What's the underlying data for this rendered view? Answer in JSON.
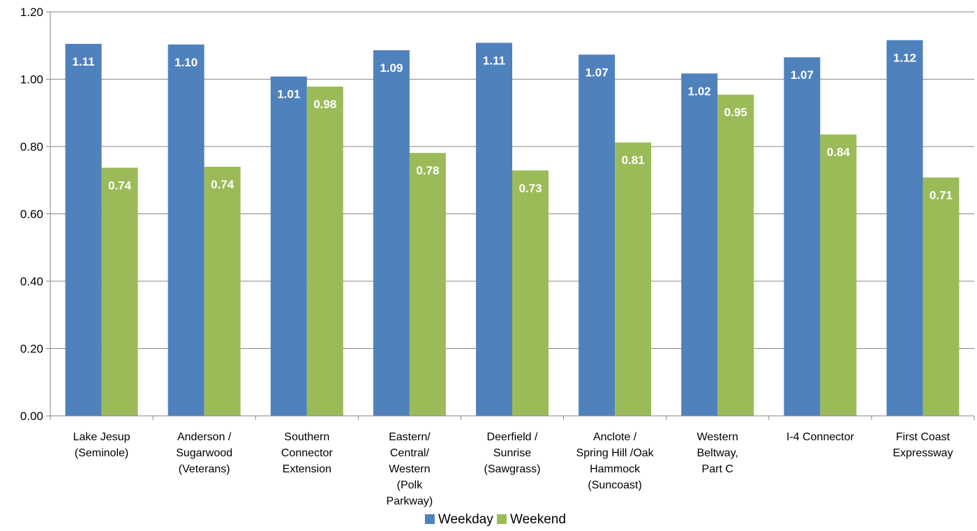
{
  "chart_data": {
    "type": "bar",
    "title": "",
    "xlabel": "",
    "ylabel": "",
    "ylim": [
      0,
      1.2
    ],
    "yticks": [
      "0.00",
      "0.20",
      "0.40",
      "0.60",
      "0.80",
      "1.00",
      "1.20"
    ],
    "grid": true,
    "legend_position": "bottom",
    "categories": [
      [
        "Lake Jesup",
        "(Seminole)"
      ],
      [
        "Anderson /",
        "Sugarwood",
        "(Veterans)"
      ],
      [
        "Southern",
        "Connector",
        "Extension"
      ],
      [
        "Eastern/",
        "Central/",
        "Western",
        "(Polk",
        "Parkway)"
      ],
      [
        "Deerfield /",
        "Sunrise",
        "(Sawgrass)"
      ],
      [
        "Anclote /",
        "Spring Hill /Oak",
        "Hammock",
        "(Suncoast)"
      ],
      [
        "Western",
        "Beltway,",
        "Part C"
      ],
      [
        "I-4 Connector"
      ],
      [
        "First Coast",
        "Expressway"
      ]
    ],
    "series": [
      {
        "name": "Weekday",
        "color": "#4F81BD",
        "values": [
          1.105,
          1.103,
          1.008,
          1.086,
          1.108,
          1.073,
          1.017,
          1.065,
          1.116
        ],
        "labels": [
          "1.11",
          "1.10",
          "1.01",
          "1.09",
          "1.11",
          "1.07",
          "1.02",
          "1.07",
          "1.12"
        ]
      },
      {
        "name": "Weekend",
        "color": "#9BBB59",
        "values": [
          0.737,
          0.74,
          0.978,
          0.781,
          0.729,
          0.812,
          0.954,
          0.836,
          0.708
        ],
        "labels": [
          "0.74",
          "0.74",
          "0.98",
          "0.78",
          "0.73",
          "0.81",
          "0.95",
          "0.84",
          "0.71"
        ]
      }
    ]
  }
}
